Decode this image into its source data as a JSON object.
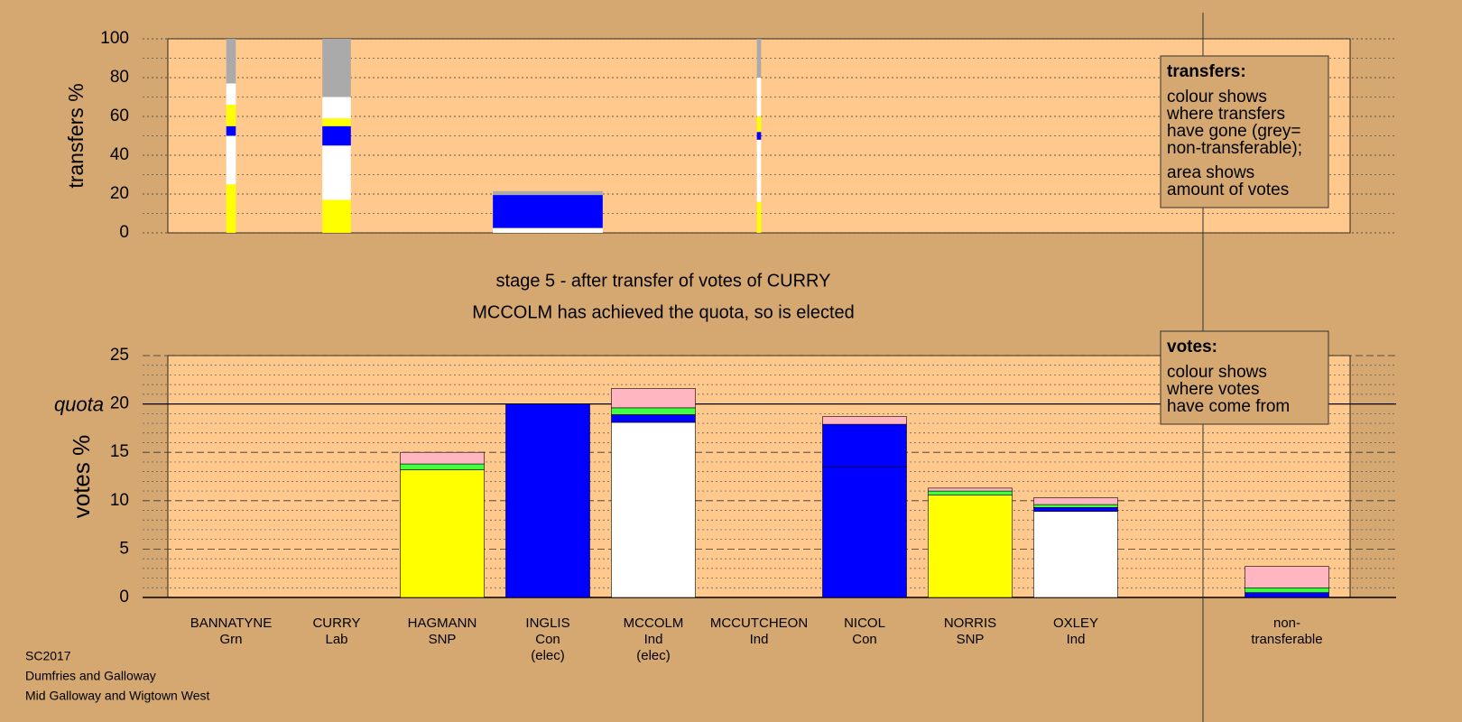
{
  "chart_data": [
    {
      "type": "stacked-width-bar",
      "ylabel": "transfers %",
      "ylim": [
        0,
        100
      ],
      "yticks": [
        0,
        20,
        40,
        60,
        80,
        100
      ],
      "minor_yticks": [
        10,
        30,
        50,
        70,
        90
      ],
      "bars": [
        {
          "width": 0.09,
          "segments": [
            {
              "color": "#ffff00",
              "value": 25
            },
            {
              "color": "#ffffff",
              "value": 25
            },
            {
              "color": "#0000ff",
              "value": 5
            },
            {
              "color": "#ffff00",
              "value": 11
            },
            {
              "color": "#ffffff",
              "value": 11
            },
            {
              "color": "#aaaaaa",
              "value": 23
            }
          ]
        },
        {
          "width": 0.27,
          "segments": [
            {
              "color": "#ffff00",
              "value": 17
            },
            {
              "color": "#ffffff",
              "value": 28
            },
            {
              "color": "#0000ff",
              "value": 10
            },
            {
              "color": "#ffff00",
              "value": 4
            },
            {
              "color": "#ffffff",
              "value": 11
            },
            {
              "color": "#aaaaaa",
              "value": 30
            }
          ]
        },
        null,
        {
          "width": 1.04,
          "segments": [
            {
              "color": "#ffffff",
              "value": 2.5
            },
            {
              "color": "#0000ff",
              "value": 17
            },
            {
              "color": "#aaaaaa",
              "value": 2
            }
          ]
        },
        null,
        {
          "width": 0.04,
          "segments": [
            {
              "color": "#ffff00",
              "value": 16
            },
            {
              "color": "#ffffff",
              "value": 32
            },
            {
              "color": "#0000ff",
              "value": 4
            },
            {
              "color": "#ffff00",
              "value": 8
            },
            {
              "color": "#ffffff",
              "value": 20
            },
            {
              "color": "#aaaaaa",
              "value": 20
            }
          ]
        },
        null,
        null,
        null,
        null,
        null
      ],
      "legend": {
        "title": "transfers:",
        "lines": [
          [
            "colour shows",
            "where transfers",
            "have gone (grey=",
            "non-transferable);"
          ],
          [
            "area shows",
            "amount of votes"
          ]
        ]
      }
    },
    {
      "type": "stacked-bar",
      "title": [
        "stage 5 - after transfer of votes of CURRY",
        "MCCOLM has achieved the quota, so is elected"
      ],
      "ylabel": "votes %",
      "ylim": [
        0,
        25
      ],
      "yticks": [
        0,
        5,
        10,
        15,
        20,
        25
      ],
      "minor_yticks": [
        1,
        2,
        3,
        4,
        6,
        7,
        8,
        9,
        11,
        12,
        13,
        14,
        16,
        17,
        18,
        19,
        21,
        22,
        23,
        24
      ],
      "quota": 20,
      "quota_label": "quota",
      "categories": [
        [
          "BANNATYNE",
          "Grn"
        ],
        [
          "CURRY",
          "Lab"
        ],
        [
          "HAGMANN",
          "SNP"
        ],
        [
          "INGLIS",
          "Con",
          "(elec)"
        ],
        [
          "MCCOLM",
          "Ind",
          "(elec)"
        ],
        [
          "MCCUTCHEON",
          "Ind"
        ],
        [
          "NICOL",
          "Con"
        ],
        [
          "NORRIS",
          "SNP"
        ],
        [
          "OXLEY",
          "Ind"
        ],
        null,
        [
          "non-",
          "transferable"
        ]
      ],
      "bars": [
        [],
        [],
        [
          {
            "color": "#ffff00",
            "value": 13.2
          },
          {
            "color": "#40ff40",
            "value": 0.6
          },
          {
            "color": "#ffb6c1",
            "value": 1.2
          }
        ],
        [
          {
            "color": "#0000ff",
            "value": 20
          }
        ],
        [
          {
            "color": "#ffffff",
            "value": 18.1
          },
          {
            "color": "#0000ff",
            "value": 0.8
          },
          {
            "color": "#40ff40",
            "value": 0.7
          },
          {
            "color": "#ffb6c1",
            "value": 2.0
          }
        ],
        [],
        [
          {
            "color": "#0000ff",
            "value": 13.5
          },
          {
            "color": "#0000ff",
            "value": 4.4
          },
          {
            "color": "#ffb6c1",
            "value": 0.8
          }
        ],
        [
          {
            "color": "#ffff00",
            "value": 10.6
          },
          {
            "color": "#40ff40",
            "value": 0.4
          },
          {
            "color": "#ffb6c1",
            "value": 0.3
          }
        ],
        [
          {
            "color": "#ffffff",
            "value": 8.9
          },
          {
            "color": "#0000ff",
            "value": 0.4
          },
          {
            "color": "#40ff40",
            "value": 0.3
          },
          {
            "color": "#ffb6c1",
            "value": 0.7
          }
        ],
        null,
        [
          {
            "color": "#0000ff",
            "value": 0.5
          },
          {
            "color": "#40ff40",
            "value": 0.5
          },
          {
            "color": "#ffb6c1",
            "value": 2.2
          }
        ]
      ],
      "legend": {
        "title": "votes:",
        "lines": [
          [
            "colour shows",
            "where votes",
            "have come from"
          ]
        ]
      }
    }
  ],
  "footer": [
    "SC2017",
    "Dumfries and Galloway",
    "Mid Galloway and Wigtown West"
  ]
}
